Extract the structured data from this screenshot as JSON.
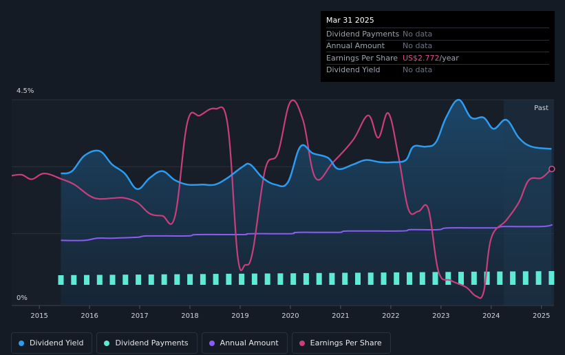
{
  "chart_data": {
    "type": "line",
    "x_axis": {
      "range": [
        2014.45,
        2025.25
      ],
      "ticks": [
        "2015",
        "2016",
        "2017",
        "2018",
        "2019",
        "2020",
        "2021",
        "2022",
        "2023",
        "2024",
        "2025"
      ]
    },
    "y_axis": {
      "range": [
        0,
        4.5
      ],
      "labels": {
        "top": "4.5%",
        "bottom": "0%"
      }
    },
    "past_label": "Past",
    "series": [
      {
        "name": "Dividend Yield",
        "color": "#2c9cf0",
        "unit": "%",
        "points": [
          [
            2015.43,
            2.85
          ],
          [
            2015.65,
            2.9
          ],
          [
            2015.9,
            3.25
          ],
          [
            2016.2,
            3.35
          ],
          [
            2016.45,
            3.05
          ],
          [
            2016.7,
            2.85
          ],
          [
            2016.95,
            2.5
          ],
          [
            2017.2,
            2.75
          ],
          [
            2017.45,
            2.9
          ],
          [
            2017.7,
            2.7
          ],
          [
            2017.95,
            2.6
          ],
          [
            2018.25,
            2.6
          ],
          [
            2018.5,
            2.6
          ],
          [
            2018.75,
            2.75
          ],
          [
            2019.05,
            3.0
          ],
          [
            2019.2,
            3.05
          ],
          [
            2019.45,
            2.75
          ],
          [
            2019.7,
            2.6
          ],
          [
            2019.95,
            2.65
          ],
          [
            2020.2,
            3.45
          ],
          [
            2020.45,
            3.3
          ],
          [
            2020.75,
            3.2
          ],
          [
            2020.95,
            2.95
          ],
          [
            2021.25,
            3.05
          ],
          [
            2021.5,
            3.15
          ],
          [
            2021.8,
            3.1
          ],
          [
            2022.05,
            3.1
          ],
          [
            2022.3,
            3.15
          ],
          [
            2022.45,
            3.45
          ],
          [
            2022.7,
            3.45
          ],
          [
            2022.9,
            3.55
          ],
          [
            2023.1,
            4.1
          ],
          [
            2023.35,
            4.5
          ],
          [
            2023.6,
            4.1
          ],
          [
            2023.85,
            4.1
          ],
          [
            2024.05,
            3.85
          ],
          [
            2024.3,
            4.05
          ],
          [
            2024.55,
            3.65
          ],
          [
            2024.8,
            3.45
          ],
          [
            2025.2,
            3.4
          ]
        ]
      },
      {
        "name": "Annual Amount",
        "color": "#8b5cf6",
        "unit": "%",
        "points": [
          [
            2015.43,
            1.35
          ],
          [
            2015.9,
            1.35
          ],
          [
            2016.15,
            1.4
          ],
          [
            2016.45,
            1.4
          ],
          [
            2016.95,
            1.42
          ],
          [
            2017.15,
            1.45
          ],
          [
            2017.95,
            1.45
          ],
          [
            2018.15,
            1.48
          ],
          [
            2019.05,
            1.48
          ],
          [
            2019.2,
            1.5
          ],
          [
            2020.0,
            1.5
          ],
          [
            2020.15,
            1.53
          ],
          [
            2020.95,
            1.53
          ],
          [
            2021.15,
            1.56
          ],
          [
            2022.2,
            1.56
          ],
          [
            2022.4,
            1.59
          ],
          [
            2022.95,
            1.59
          ],
          [
            2023.15,
            1.63
          ],
          [
            2024.05,
            1.63
          ],
          [
            2024.25,
            1.66
          ],
          [
            2025.0,
            1.66
          ],
          [
            2025.22,
            1.7
          ]
        ]
      },
      {
        "name": "Earnings Per Share",
        "color": "#c93f7c",
        "unit": "relative",
        "points": [
          [
            2014.45,
            2.8
          ],
          [
            2014.65,
            2.82
          ],
          [
            2014.85,
            2.72
          ],
          [
            2015.1,
            2.85
          ],
          [
            2015.45,
            2.72
          ],
          [
            2015.7,
            2.6
          ],
          [
            2016.0,
            2.35
          ],
          [
            2016.2,
            2.28
          ],
          [
            2016.5,
            2.3
          ],
          [
            2016.7,
            2.3
          ],
          [
            2016.95,
            2.2
          ],
          [
            2017.2,
            1.95
          ],
          [
            2017.45,
            1.9
          ],
          [
            2017.7,
            1.88
          ],
          [
            2017.95,
            4.0
          ],
          [
            2018.2,
            4.15
          ],
          [
            2018.5,
            4.3
          ],
          [
            2018.75,
            3.95
          ],
          [
            2018.95,
            1.0
          ],
          [
            2019.1,
            0.8
          ],
          [
            2019.25,
            1.1
          ],
          [
            2019.5,
            2.95
          ],
          [
            2019.75,
            3.3
          ],
          [
            2020.0,
            4.45
          ],
          [
            2020.25,
            4.05
          ],
          [
            2020.5,
            2.75
          ],
          [
            2020.85,
            3.1
          ],
          [
            2021.25,
            3.6
          ],
          [
            2021.55,
            4.15
          ],
          [
            2021.75,
            3.65
          ],
          [
            2021.95,
            4.2
          ],
          [
            2022.15,
            3.25
          ],
          [
            2022.35,
            2.05
          ],
          [
            2022.55,
            2.0
          ],
          [
            2022.75,
            2.05
          ],
          [
            2022.95,
            0.65
          ],
          [
            2023.2,
            0.45
          ],
          [
            2023.5,
            0.3
          ],
          [
            2023.7,
            0.1
          ],
          [
            2023.85,
            0.2
          ],
          [
            2024.0,
            1.4
          ],
          [
            2024.3,
            1.8
          ],
          [
            2024.55,
            2.2
          ],
          [
            2024.75,
            2.7
          ],
          [
            2025.0,
            2.75
          ],
          [
            2025.2,
            2.95
          ]
        ]
      },
      {
        "name": "Dividend Payments",
        "color": "#5eead4",
        "unit": "payments",
        "start_year": 2015.43,
        "end_year": 2025.2,
        "count": 39
      }
    ]
  },
  "tooltip": {
    "date": "Mar 31 2025",
    "rows": [
      {
        "label": "Dividend Payments",
        "value": "No data"
      },
      {
        "label": "Annual Amount",
        "value": "No data"
      },
      {
        "label": "Earnings Per Share",
        "value_highlight": "US$2.772",
        "value_unit": "/year"
      },
      {
        "label": "Dividend Yield",
        "value": "No data"
      }
    ]
  },
  "legend": [
    {
      "label": "Dividend Yield",
      "color": "#2c9cf0"
    },
    {
      "label": "Dividend Payments",
      "color": "#5eead4"
    },
    {
      "label": "Annual Amount",
      "color": "#8b5cf6"
    },
    {
      "label": "Earnings Per Share",
      "color": "#c93f7c"
    }
  ]
}
